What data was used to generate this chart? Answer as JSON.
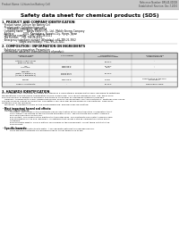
{
  "header_left": "Product Name: Lithium Ion Battery Cell",
  "header_right_line1": "Reference Number: BR545-0001B",
  "header_right_line2": "Established / Revision: Dec.7.2010",
  "title": "Safety data sheet for chemical products (SDS)",
  "section1_title": "1. PRODUCT AND COMPANY IDENTIFICATION",
  "section1_items": [
    "Product name: Lithium Ion Battery Cell",
    "Product code: Cylindrical-type cell",
    "    IXR18650, IXR18650L, IXR18650A",
    "Company name:    Banyu Electric Co., Ltd., Mobile Energy Company",
    "Address:           2001, Kamitakara, Sumoto-City, Hyogo, Japan",
    "Telephone number:   +81-(799)-26-4111",
    "Fax number:   +81-799-26-4121",
    "Emergency telephone number (Weekday): +81-799-26-3962",
    "                   (Night and holiday): +81-799-26-3101"
  ],
  "section2_title": "2. COMPOSITION / INFORMATION ON INGREDIENTS",
  "section2_sub": "Substance or preparation: Preparation",
  "section2_sub2": "Information about the chemical nature of product:",
  "table_headers": [
    "Common name\nBrand name",
    "CAS number",
    "Concentration /\nConcentration range",
    "Classification and\nhazard labeling"
  ],
  "row_data": [
    [
      "Lithium cobalt oxide\n(LiMn-Co-Ni-O2)",
      "-",
      "30-60%",
      "-"
    ],
    [
      "Iron\nAluminum",
      "7439-89-6\n7429-90-5",
      "10-25%\n2-5%",
      "-\n-"
    ],
    [
      "Graphite\n(Metal in graphite-1)\n(Al-Mo in graphite-1)",
      "-\n77703-42-5\n77703-44-7",
      "10-20%",
      "-"
    ],
    [
      "Copper",
      "7440-50-8",
      "0-15%",
      "Sensitization of the skin\ngroup No.2"
    ],
    [
      "Organic electrolyte",
      "-",
      "10-20%",
      "Flammable liquid"
    ]
  ],
  "section3_title": "3. HAZARDS IDENTIFICATION",
  "section3_para": [
    "For the battery cell, chemical materials are stored in a hermetically sealed metal case, designed to withstand",
    "temperatures and pressures-combination during normal use. As a result, during normal use, there is no",
    "physical danger of ignition or explosion and there is no danger of hazardous materials leakage.",
    "    However, if exposed to a fire, added mechanical shocks, decomposed, shorted electrically, mistakes may cause.",
    "The gas release cannot be operated. The battery cell case will be breached of flue-particles, hazardous",
    "materials may be released.",
    "    Moreover, if heated strongly by the surrounding fire, acid gas may be emitted."
  ],
  "section3_bullet1": "Most important hazard and effects:",
  "section3_human": "Human health effects:",
  "section3_details": [
    "        Inhalation: The release of the electrolyte has an anesthetics action and stimulates in respiratory tract.",
    "        Skin contact: The release of the electrolyte stimulates a skin. The electrolyte skin contact causes a",
    "        sore and stimulation on the skin.",
    "        Eye contact: The release of the electrolyte stimulates eyes. The electrolyte eye contact causes a sore",
    "        and stimulation on the eye. Especially, a substance that causes a strong inflammation of the eye is",
    "        contained.",
    "        Environmental effects: Since a battery cell remains in the environment, do not throw out it into the",
    "        environment."
  ],
  "section3_bullet2": "Specific hazards:",
  "section3_specific": [
    "        If the electrolyte contacts with water, it will generate detrimental hydrogen fluoride.",
    "        Since the seal electrolyte is a flammable liquid, do not bring close to fire."
  ],
  "bg_color": "#ffffff",
  "text_color": "#000000",
  "header_bg": "#c8c8c8",
  "table_header_bg": "#d0d0d0"
}
